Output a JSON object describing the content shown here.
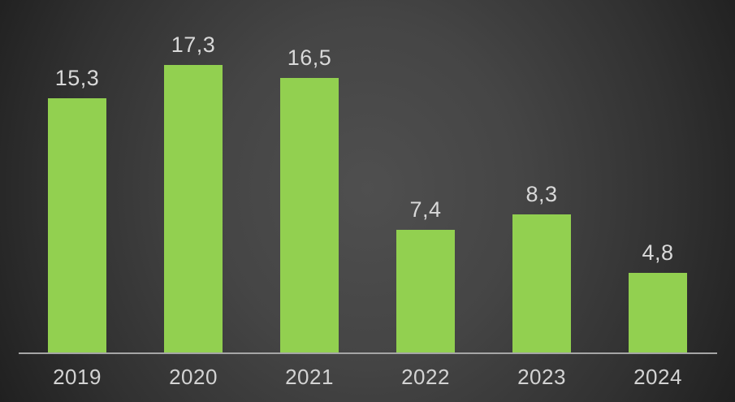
{
  "chart_data": {
    "type": "bar",
    "categories": [
      "2019",
      "2020",
      "2021",
      "2022",
      "2023",
      "2024"
    ],
    "values": [
      15.3,
      17.3,
      16.5,
      7.4,
      8.3,
      4.8
    ],
    "value_labels": [
      "15,3",
      "17,3",
      "16,5",
      "7,4",
      "8,3",
      "4,8"
    ],
    "title": "",
    "xlabel": "",
    "ylabel": "",
    "ylim": [
      0,
      21.2
    ],
    "grid": false,
    "legend": false,
    "bar_color": "#92d050",
    "value_label_color": "#d9d9d9",
    "category_label_color": "#d3d3d3",
    "axis_line_color": "#a6a6a6",
    "background_center_color": "#4f4f4f",
    "background_edge_color": "#1c1c1c"
  }
}
